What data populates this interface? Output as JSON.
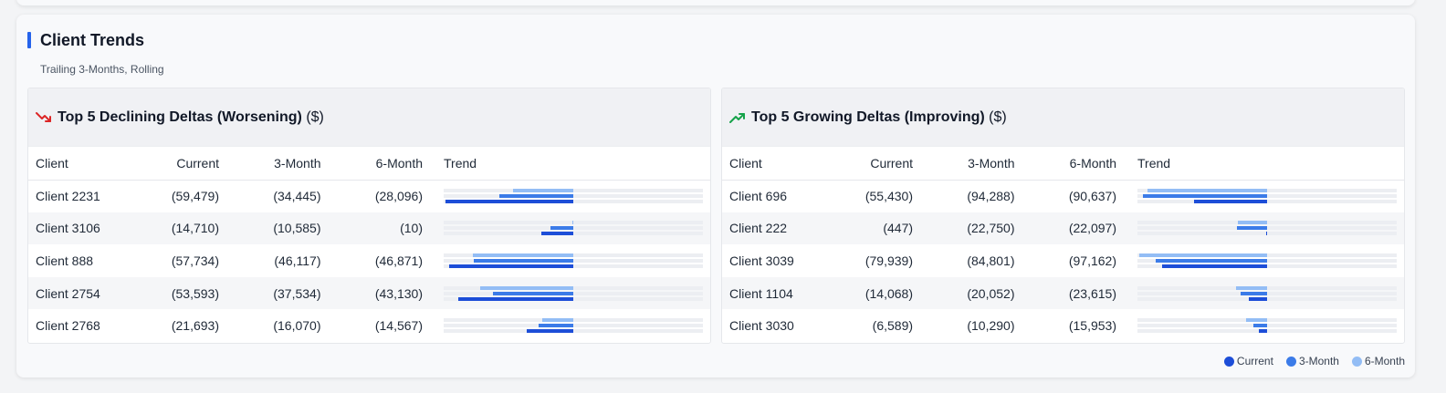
{
  "section": {
    "title": "Client Trends",
    "subtitle": "Trailing 3-Months, Rolling",
    "accent_color": "#2563eb"
  },
  "headers": {
    "client": "Client",
    "current": "Current",
    "m3": "3-Month",
    "m6": "6-Month",
    "trend": "Trend"
  },
  "declining": {
    "icon": "trending-down-icon",
    "icon_color": "#dc2626",
    "title": "Top 5 Declining Deltas (Worsening)",
    "unit": "($)",
    "rows": [
      {
        "client": "Client 2231",
        "current": "(59,479)",
        "m3": "(34,445)",
        "m6": "(28,096)",
        "cur": -59479,
        "v3": -34445,
        "v6": -28096
      },
      {
        "client": "Client 3106",
        "current": "(14,710)",
        "m3": "(10,585)",
        "m6": "(10)",
        "cur": -14710,
        "v3": -10585,
        "v6": -10
      },
      {
        "client": "Client 888",
        "current": "(57,734)",
        "m3": "(46,117)",
        "m6": "(46,871)",
        "cur": -57734,
        "v3": -46117,
        "v6": -46871
      },
      {
        "client": "Client 2754",
        "current": "(53,593)",
        "m3": "(37,534)",
        "m6": "(43,130)",
        "cur": -53593,
        "v3": -37534,
        "v6": -43130
      },
      {
        "client": "Client 2768",
        "current": "(21,693)",
        "m3": "(16,070)",
        "m6": "(14,567)",
        "cur": -21693,
        "v3": -16070,
        "v6": -14567
      }
    ]
  },
  "growing": {
    "icon": "trending-up-icon",
    "icon_color": "#16a34a",
    "title": "Top 5 Growing Deltas (Improving)",
    "unit": "($)",
    "rows": [
      {
        "client": "Client 696",
        "current": "(55,430)",
        "m3": "(94,288)",
        "m6": "(90,637)",
        "cur": -55430,
        "v3": -94288,
        "v6": -90637
      },
      {
        "client": "Client 222",
        "current": "(447)",
        "m3": "(22,750)",
        "m6": "(22,097)",
        "cur": -447,
        "v3": -22750,
        "v6": -22097
      },
      {
        "client": "Client 3039",
        "current": "(79,939)",
        "m3": "(84,801)",
        "m6": "(97,162)",
        "cur": -79939,
        "v3": -84801,
        "v6": -97162
      },
      {
        "client": "Client 1104",
        "current": "(14,068)",
        "m3": "(20,052)",
        "m6": "(23,615)",
        "cur": -14068,
        "v3": -20052,
        "v6": -23615
      },
      {
        "client": "Client 3030",
        "current": "(6,589)",
        "m3": "(10,290)",
        "m6": "(15,953)",
        "cur": -6589,
        "v3": -10290,
        "v6": -15953
      }
    ]
  },
  "legend": [
    {
      "label": "Current",
      "color": "#1d4ed8"
    },
    {
      "label": "3-Month",
      "color": "#3b7be8"
    },
    {
      "label": "6-Month",
      "color": "#93bdf5"
    }
  ]
}
